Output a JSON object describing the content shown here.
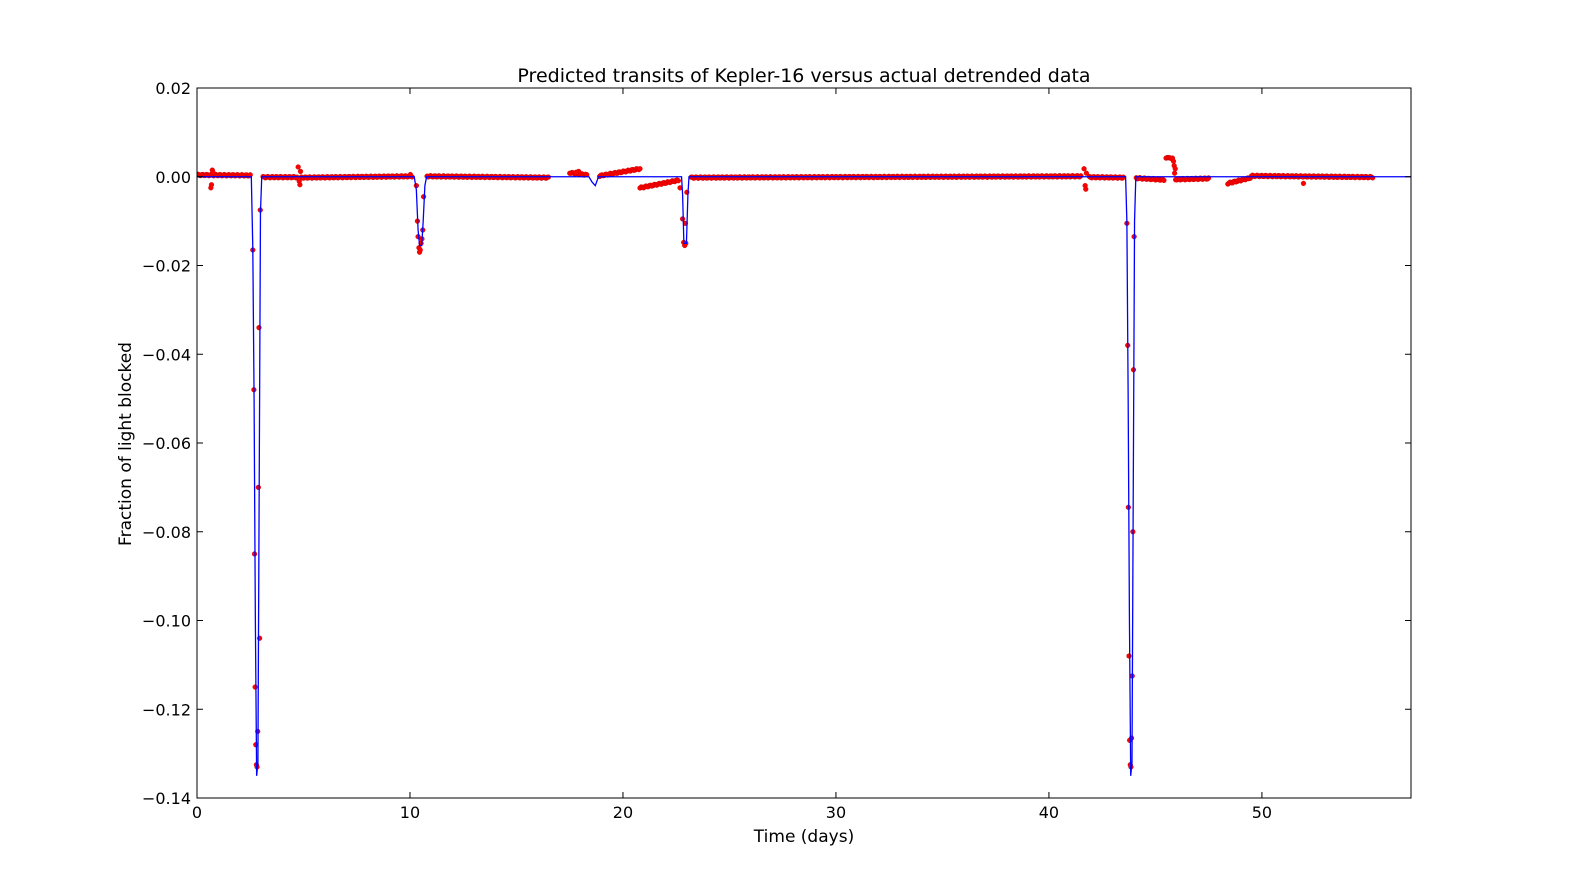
{
  "chart_data": {
    "type": "scatter",
    "title": "Predicted transits of Kepler-16 versus actual detrended data",
    "xlabel": "Time (days)",
    "ylabel": "Fraction of light blocked",
    "xlim": [
      0,
      57
    ],
    "ylim": [
      -0.14,
      0.02
    ],
    "xticks": [
      0,
      10,
      20,
      30,
      40,
      50
    ],
    "xtick_labels": [
      "0",
      "10",
      "20",
      "30",
      "40",
      "50"
    ],
    "yticks": [
      0.02,
      0.0,
      -0.02,
      -0.04,
      -0.06,
      -0.08,
      -0.1,
      -0.12,
      -0.14
    ],
    "ytick_labels": [
      "0.02",
      "0.00",
      "−0.02",
      "−0.04",
      "−0.06",
      "−0.08",
      "−0.10",
      "−0.12",
      "−0.14"
    ],
    "grid": false,
    "series": [
      {
        "kind": "line",
        "color": "#0000ff",
        "points": [
          [
            0,
            0
          ],
          [
            2.55,
            0
          ],
          [
            2.62,
            -0.016
          ],
          [
            2.68,
            -0.05
          ],
          [
            2.74,
            -0.1
          ],
          [
            2.8,
            -0.135
          ],
          [
            2.86,
            -0.132
          ],
          [
            2.92,
            -0.07
          ],
          [
            2.98,
            -0.008
          ],
          [
            3.04,
            0
          ],
          [
            10.2,
            0
          ],
          [
            10.3,
            -0.003
          ],
          [
            10.38,
            -0.012
          ],
          [
            10.45,
            -0.0155
          ],
          [
            10.55,
            -0.0155
          ],
          [
            10.62,
            -0.01
          ],
          [
            10.7,
            -0.002
          ],
          [
            10.78,
            0
          ],
          [
            18.4,
            0
          ],
          [
            18.55,
            -0.0012
          ],
          [
            18.7,
            -0.002
          ],
          [
            18.85,
            0
          ],
          [
            22.75,
            0
          ],
          [
            22.8,
            -0.004
          ],
          [
            22.86,
            -0.015
          ],
          [
            22.98,
            -0.015
          ],
          [
            23.05,
            -0.004
          ],
          [
            23.1,
            0
          ],
          [
            43.6,
            0
          ],
          [
            43.66,
            -0.01
          ],
          [
            43.72,
            -0.05
          ],
          [
            43.78,
            -0.1
          ],
          [
            43.84,
            -0.135
          ],
          [
            43.9,
            -0.132
          ],
          [
            43.96,
            -0.07
          ],
          [
            44.02,
            -0.01
          ],
          [
            44.08,
            0
          ],
          [
            57,
            0
          ]
        ]
      },
      {
        "kind": "scatter",
        "color": "#ff0000",
        "baseline_segments": [
          {
            "x": [
              0.0,
              2.5
            ],
            "y": [
              0.0004,
              0.0003
            ]
          },
          {
            "x": [
              3.1,
              4.7
            ],
            "y": [
              -0.0001,
              -0.0001
            ]
          },
          {
            "x": [
              4.9,
              10.1
            ],
            "y": [
              -0.0002,
              0.0001
            ]
          },
          {
            "x": [
              10.8,
              16.5
            ],
            "y": [
              0.0001,
              -0.0002
            ]
          },
          {
            "x": [
              17.5,
              18.3
            ],
            "y": [
              0.0009,
              0.0004
            ]
          },
          {
            "x": [
              18.9,
              20.8
            ],
            "y": [
              0.0002,
              0.0018
            ]
          },
          {
            "x": [
              20.8,
              22.6
            ],
            "y": [
              -0.0025,
              -0.0008
            ]
          },
          {
            "x": [
              23.2,
              41.5
            ],
            "y": [
              -0.0002,
              0.0001
            ]
          },
          {
            "x": [
              41.9,
              43.5
            ],
            "y": [
              -0.0001,
              -0.0002
            ]
          },
          {
            "x": [
              44.1,
              45.4
            ],
            "y": [
              -0.0003,
              -0.0007
            ]
          },
          {
            "x": [
              45.95,
              47.5
            ],
            "y": [
              -0.0006,
              -0.0004
            ]
          },
          {
            "x": [
              48.4,
              49.5
            ],
            "y": [
              -0.0015,
              -0.0002
            ]
          },
          {
            "x": [
              49.5,
              55.2
            ],
            "y": [
              0.0002,
              -0.0001
            ]
          }
        ],
        "points": [
          [
            2.62,
            -0.0165
          ],
          [
            2.67,
            -0.048
          ],
          [
            2.7,
            -0.085
          ],
          [
            2.73,
            -0.115
          ],
          [
            2.76,
            -0.128
          ],
          [
            2.79,
            -0.1325
          ],
          [
            2.82,
            -0.133
          ],
          [
            2.85,
            -0.125
          ],
          [
            2.88,
            -0.07
          ],
          [
            2.91,
            -0.034
          ],
          [
            2.94,
            -0.104
          ],
          [
            2.97,
            -0.0075
          ],
          [
            0.65,
            -0.0025
          ],
          [
            0.68,
            -0.0018
          ],
          [
            0.72,
            0.0015
          ],
          [
            0.75,
            0.001
          ],
          [
            4.75,
            0.0022
          ],
          [
            4.8,
            -0.001
          ],
          [
            4.83,
            -0.0018
          ],
          [
            4.86,
            0.0012
          ],
          [
            10.3,
            -0.002
          ],
          [
            10.35,
            -0.01
          ],
          [
            10.38,
            -0.0135
          ],
          [
            10.42,
            -0.016
          ],
          [
            10.45,
            -0.017
          ],
          [
            10.48,
            -0.0165
          ],
          [
            10.52,
            -0.015
          ],
          [
            10.56,
            -0.014
          ],
          [
            10.6,
            -0.012
          ],
          [
            10.64,
            -0.0045
          ],
          [
            10.02,
            0.0005
          ],
          [
            17.92,
            0.0012
          ],
          [
            17.8,
            0.001
          ],
          [
            22.68,
            -0.0025
          ],
          [
            22.8,
            -0.0095
          ],
          [
            22.85,
            -0.0148
          ],
          [
            22.9,
            -0.0155
          ],
          [
            22.95,
            -0.015
          ],
          [
            22.93,
            -0.0105
          ],
          [
            23.0,
            -0.0035
          ],
          [
            41.65,
            0.0018
          ],
          [
            41.7,
            -0.002
          ],
          [
            41.73,
            -0.0028
          ],
          [
            41.76,
            0.0008
          ],
          [
            43.66,
            -0.0105
          ],
          [
            43.7,
            -0.038
          ],
          [
            43.73,
            -0.0745
          ],
          [
            43.76,
            -0.108
          ],
          [
            43.79,
            -0.127
          ],
          [
            43.82,
            -0.1325
          ],
          [
            43.85,
            -0.133
          ],
          [
            43.88,
            -0.1265
          ],
          [
            43.91,
            -0.1125
          ],
          [
            43.94,
            -0.08
          ],
          [
            43.97,
            -0.0435
          ],
          [
            44.0,
            -0.0135
          ],
          [
            45.5,
            0.0042
          ],
          [
            45.55,
            0.0043
          ],
          [
            45.6,
            0.0043
          ],
          [
            45.65,
            0.0043
          ],
          [
            45.7,
            0.0042
          ],
          [
            45.75,
            0.0041
          ],
          [
            45.8,
            0.0042
          ],
          [
            45.85,
            0.0035
          ],
          [
            45.88,
            0.0025
          ],
          [
            45.9,
            0.0008
          ],
          [
            45.93,
            0.0018
          ],
          [
            51.95,
            -0.0015
          ]
        ]
      }
    ]
  }
}
